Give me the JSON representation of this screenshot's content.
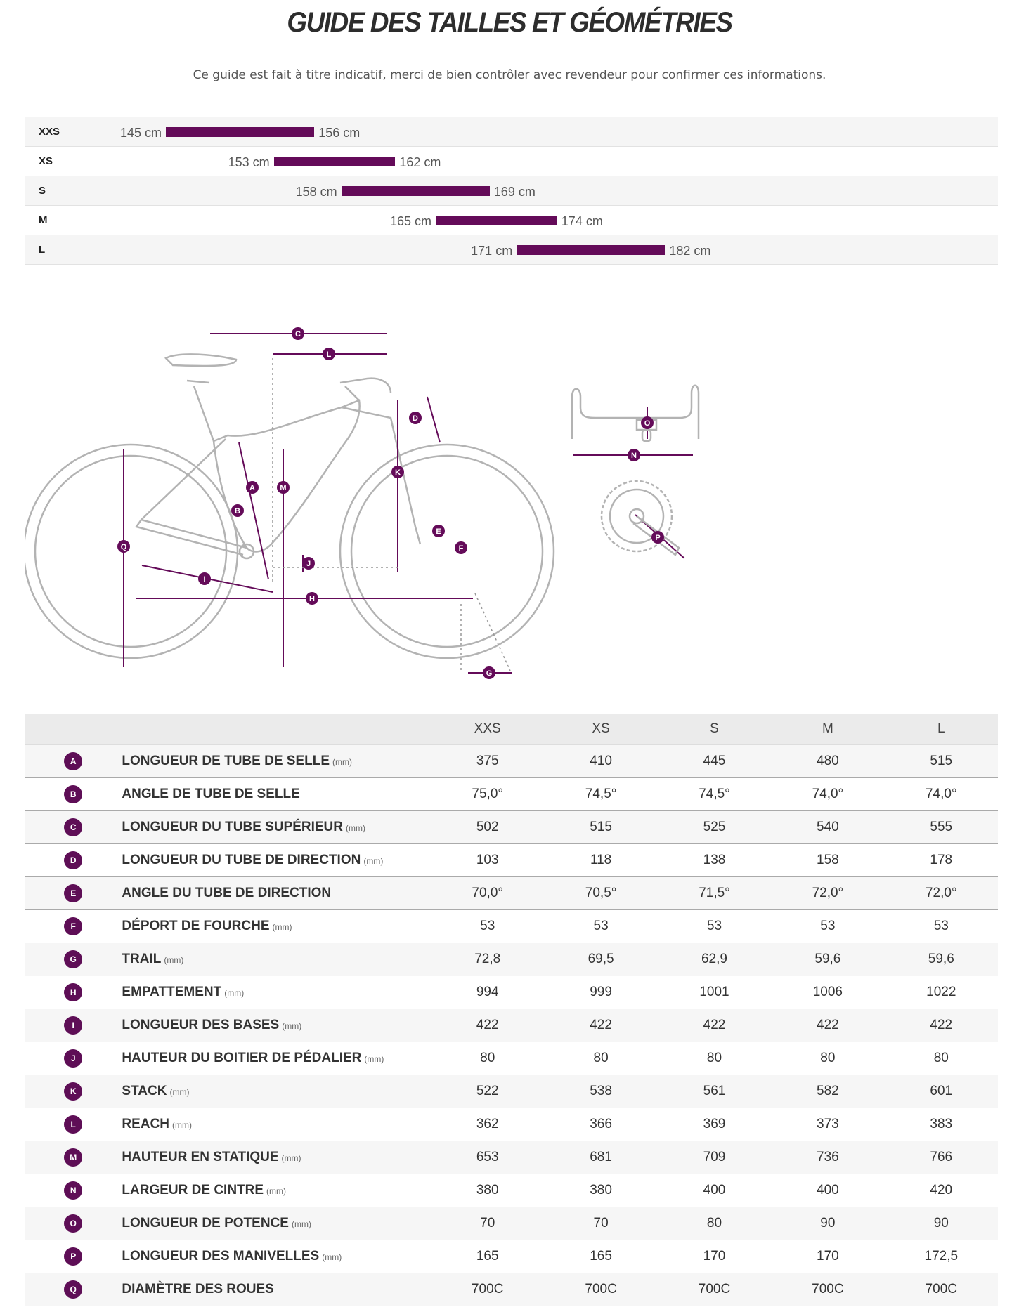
{
  "title": "GUIDE DES TAILLES ET GÉOMÉTRIES",
  "subtitle": "Ce guide est fait à titre indicatif, merci de bien contrôler avec revendeur pour confirmer ces informations.",
  "colors": {
    "accent": "#640b59",
    "line": "#b0b0b0"
  },
  "size_chart": {
    "axis_min_cm": 145,
    "axis_max_cm": 182,
    "rows": [
      {
        "size": "XXS",
        "min": 145,
        "max": 156,
        "min_label": "145 cm",
        "max_label": "156 cm"
      },
      {
        "size": "XS",
        "min": 153,
        "max": 162,
        "min_label": "153 cm",
        "max_label": "162 cm"
      },
      {
        "size": "S",
        "min": 158,
        "max": 169,
        "min_label": "158 cm",
        "max_label": "169 cm"
      },
      {
        "size": "M",
        "min": 165,
        "max": 174,
        "min_label": "165 cm",
        "max_label": "174 cm"
      },
      {
        "size": "L",
        "min": 171,
        "max": 182,
        "min_label": "171 cm",
        "max_label": "182 cm"
      }
    ]
  },
  "diagram": {
    "labels": [
      "A",
      "B",
      "C",
      "D",
      "E",
      "F",
      "G",
      "H",
      "I",
      "J",
      "K",
      "L",
      "M",
      "N",
      "O",
      "P",
      "Q"
    ]
  },
  "geometry": {
    "columns": [
      "XXS",
      "XS",
      "S",
      "M",
      "L"
    ],
    "rows": [
      {
        "badge": "A",
        "name": "LONGUEUR DE TUBE DE SELLE",
        "unit": "(mm)",
        "values": [
          "375",
          "410",
          "445",
          "480",
          "515"
        ]
      },
      {
        "badge": "B",
        "name": "ANGLE DE TUBE DE SELLE",
        "unit": "",
        "values": [
          "75,0°",
          "74,5°",
          "74,5°",
          "74,0°",
          "74,0°"
        ]
      },
      {
        "badge": "C",
        "name": "LONGUEUR DU TUBE SUPÉRIEUR",
        "unit": "(mm)",
        "values": [
          "502",
          "515",
          "525",
          "540",
          "555"
        ]
      },
      {
        "badge": "D",
        "name": "LONGUEUR DU TUBE DE DIRECTION",
        "unit": "(mm)",
        "values": [
          "103",
          "118",
          "138",
          "158",
          "178"
        ]
      },
      {
        "badge": "E",
        "name": "ANGLE DU TUBE DE DIRECTION",
        "unit": "",
        "values": [
          "70,0°",
          "70,5°",
          "71,5°",
          "72,0°",
          "72,0°"
        ]
      },
      {
        "badge": "F",
        "name": "DÉPORT DE FOURCHE",
        "unit": "(mm)",
        "values": [
          "53",
          "53",
          "53",
          "53",
          "53"
        ]
      },
      {
        "badge": "G",
        "name": "TRAIL",
        "unit": "(mm)",
        "values": [
          "72,8",
          "69,5",
          "62,9",
          "59,6",
          "59,6"
        ]
      },
      {
        "badge": "H",
        "name": "EMPATTEMENT",
        "unit": "(mm)",
        "values": [
          "994",
          "999",
          "1001",
          "1006",
          "1022"
        ]
      },
      {
        "badge": "I",
        "name": "LONGUEUR DES BASES",
        "unit": "(mm)",
        "values": [
          "422",
          "422",
          "422",
          "422",
          "422"
        ]
      },
      {
        "badge": "J",
        "name": "HAUTEUR DU BOITIER DE PÉDALIER",
        "unit": "(mm)",
        "values": [
          "80",
          "80",
          "80",
          "80",
          "80"
        ]
      },
      {
        "badge": "K",
        "name": "STACK",
        "unit": "(mm)",
        "values": [
          "522",
          "538",
          "561",
          "582",
          "601"
        ]
      },
      {
        "badge": "L",
        "name": "REACH",
        "unit": "(mm)",
        "values": [
          "362",
          "366",
          "369",
          "373",
          "383"
        ]
      },
      {
        "badge": "M",
        "name": "HAUTEUR EN STATIQUE",
        "unit": "(mm)",
        "values": [
          "653",
          "681",
          "709",
          "736",
          "766"
        ]
      },
      {
        "badge": "N",
        "name": "LARGEUR DE CINTRE",
        "unit": "(mm)",
        "values": [
          "380",
          "380",
          "400",
          "400",
          "420"
        ]
      },
      {
        "badge": "O",
        "name": "LONGUEUR DE POTENCE",
        "unit": "(mm)",
        "values": [
          "70",
          "70",
          "80",
          "90",
          "90"
        ]
      },
      {
        "badge": "P",
        "name": "LONGUEUR DES MANIVELLES",
        "unit": "(mm)",
        "values": [
          "165",
          "165",
          "170",
          "170",
          "172,5"
        ]
      },
      {
        "badge": "Q",
        "name": "DIAMÈTRE DES ROUES",
        "unit": "",
        "values": [
          "700C",
          "700C",
          "700C",
          "700C",
          "700C"
        ]
      }
    ]
  }
}
